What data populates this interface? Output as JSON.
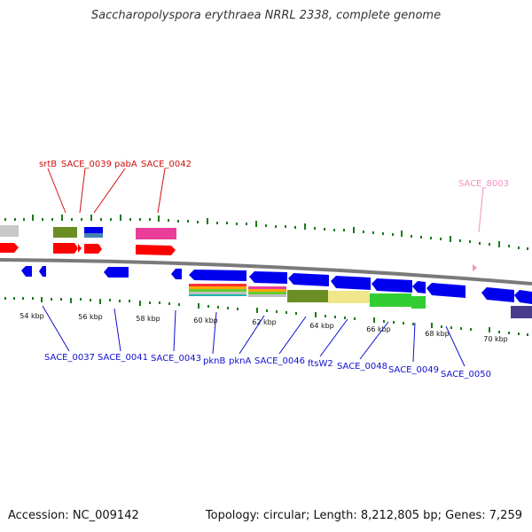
{
  "title": "Saccharopolyspora erythraea NRRL 2338, complete genome",
  "footer": {
    "accession": "Accession: NC_009142",
    "summary": "Topology: circular; Length: 8,212,805 bp; Genes: 7,259"
  },
  "colors": {
    "top_labels": "#d01010",
    "pink_label": "#f090c0",
    "bottom_labels": "#1010d0",
    "tick": "#1a7a1a",
    "backbone": "#7a7a7a",
    "forward_gene": "#ff0000",
    "reverse_gene": "#0000ee"
  },
  "top_labels": [
    {
      "text": "srtB"
    },
    {
      "text": "SACE_0039"
    },
    {
      "text": "pabA"
    },
    {
      "text": "SACE_0042"
    }
  ],
  "pink_label": {
    "text": "SACE_8003"
  },
  "bottom_labels": [
    {
      "text": "SACE_0037"
    },
    {
      "text": "SACE_0041"
    },
    {
      "text": "SACE_0043"
    },
    {
      "text": "pknB"
    },
    {
      "text": "pknA"
    },
    {
      "text": "SACE_0046"
    },
    {
      "text": "ftsW2"
    },
    {
      "text": "SACE_0048"
    },
    {
      "text": "SACE_0049"
    },
    {
      "text": "SACE_0050"
    }
  ],
  "scale_labels": [
    "54 kbp",
    "56 kbp",
    "58 kbp",
    "60 kbp",
    "62 kbp",
    "64 kbp",
    "66 kbp",
    "68 kbp",
    "70 kbp"
  ]
}
